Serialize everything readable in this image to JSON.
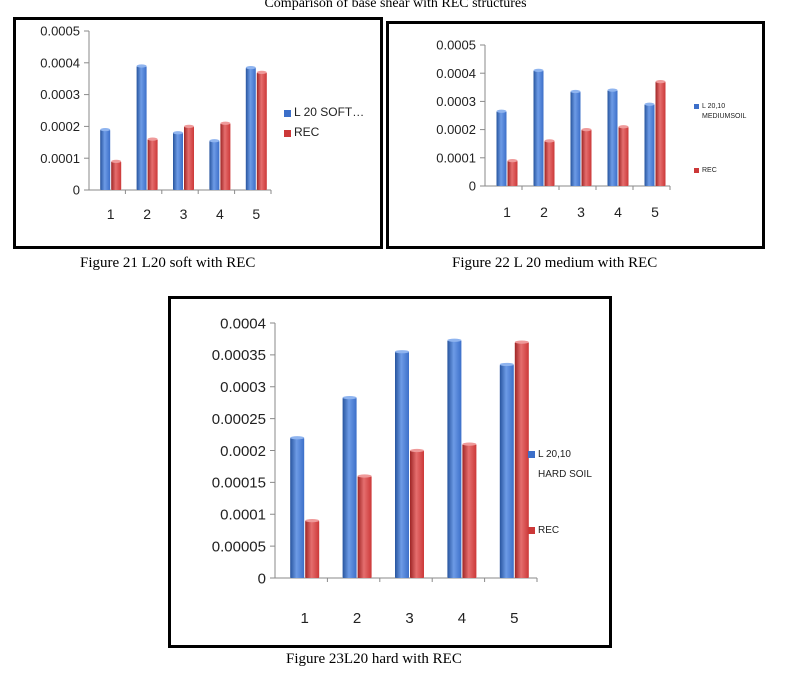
{
  "page_title": "Comparison of base shear with REC structures",
  "captions": [
    "Figure 21 L20 soft with REC",
    "Figure 22 L 20 medium with REC",
    "Figure 23L20 hard with REC"
  ],
  "colors": {
    "blue": "#3c6fc9",
    "red": "#cc3838"
  },
  "chart_data": [
    {
      "type": "bar",
      "title": "",
      "categories": [
        "1",
        "2",
        "3",
        "4",
        "5"
      ],
      "yticks": [
        "0",
        "0.0001",
        "0.0002",
        "0.0003",
        "0.0004",
        "0.0005"
      ],
      "ylim": [
        0,
        0.0005
      ],
      "legend_position": "right",
      "series": [
        {
          "name": "L 20 SOFT…",
          "values": [
            0.00019,
            0.00039,
            0.00018,
            0.000155,
            0.000385
          ]
        },
        {
          "name": "REC",
          "values": [
            9e-05,
            0.00016,
            0.0002,
            0.00021,
            0.00037
          ]
        }
      ]
    },
    {
      "type": "bar",
      "title": "",
      "categories": [
        "1",
        "2",
        "3",
        "4",
        "5"
      ],
      "yticks": [
        "0",
        "0.0001",
        "0.0002",
        "0.0003",
        "0.0004",
        "0.0005"
      ],
      "ylim": [
        0,
        0.0005
      ],
      "legend_position": "right",
      "series": [
        {
          "name": "L 20,10 MEDIUMSOIL",
          "values": [
            0.000265,
            0.00041,
            0.000335,
            0.00034,
            0.00029
          ]
        },
        {
          "name": "REC",
          "values": [
            9e-05,
            0.00016,
            0.0002,
            0.00021,
            0.00037
          ]
        }
      ]
    },
    {
      "type": "bar",
      "title": "",
      "categories": [
        "1",
        "2",
        "3",
        "4",
        "5"
      ],
      "yticks": [
        "0",
        "0.00005",
        "0.0001",
        "0.00015",
        "0.0002",
        "0.00025",
        "0.0003",
        "0.00035",
        "0.0004"
      ],
      "ylim": [
        0,
        0.0004
      ],
      "legend_position": "right",
      "series": [
        {
          "name": "L 20,10 HARD SOIL",
          "values": [
            0.00022,
            0.000283,
            0.000355,
            0.000373,
            0.000335
          ]
        },
        {
          "name": "REC",
          "values": [
            9e-05,
            0.00016,
            0.0002,
            0.00021,
            0.00037
          ]
        }
      ]
    }
  ]
}
